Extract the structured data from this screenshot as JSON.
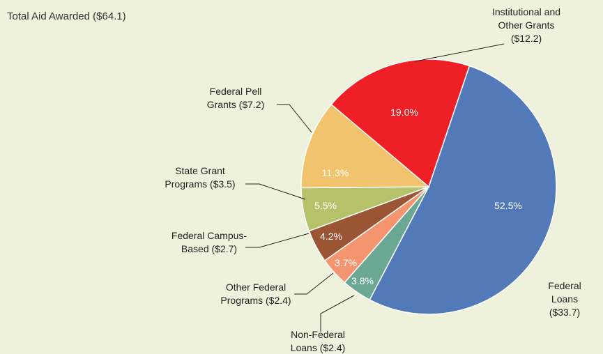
{
  "chart_data": {
    "type": "pie",
    "title": "Total Aid Awarded ($64.1)",
    "categories": [
      "Federal Loans\n($33.7)",
      "Non-Federal\nLoans ($2.4)",
      "Other Federal\nPrograms ($2.4)",
      "Federal Campus-\nBased ($2.7)",
      "State Grant\nPrograms ($3.5)",
      "Federal Pell\nGrants ($7.2)",
      "Institutional and\nOther Grants\n($12.2)"
    ],
    "values": [
      52.5,
      3.8,
      3.7,
      4.2,
      5.5,
      11.3,
      19.0
    ],
    "value_labels": [
      "52.5%",
      "3.8%",
      "3.7%",
      "4.2%",
      "5.5%",
      "11.3%",
      "19.0%"
    ],
    "colors": [
      "#5279b8",
      "#6aa893",
      "#f4956f",
      "#9b5434",
      "#b6c26a",
      "#f1c36c",
      "#ee1f25"
    ]
  }
}
